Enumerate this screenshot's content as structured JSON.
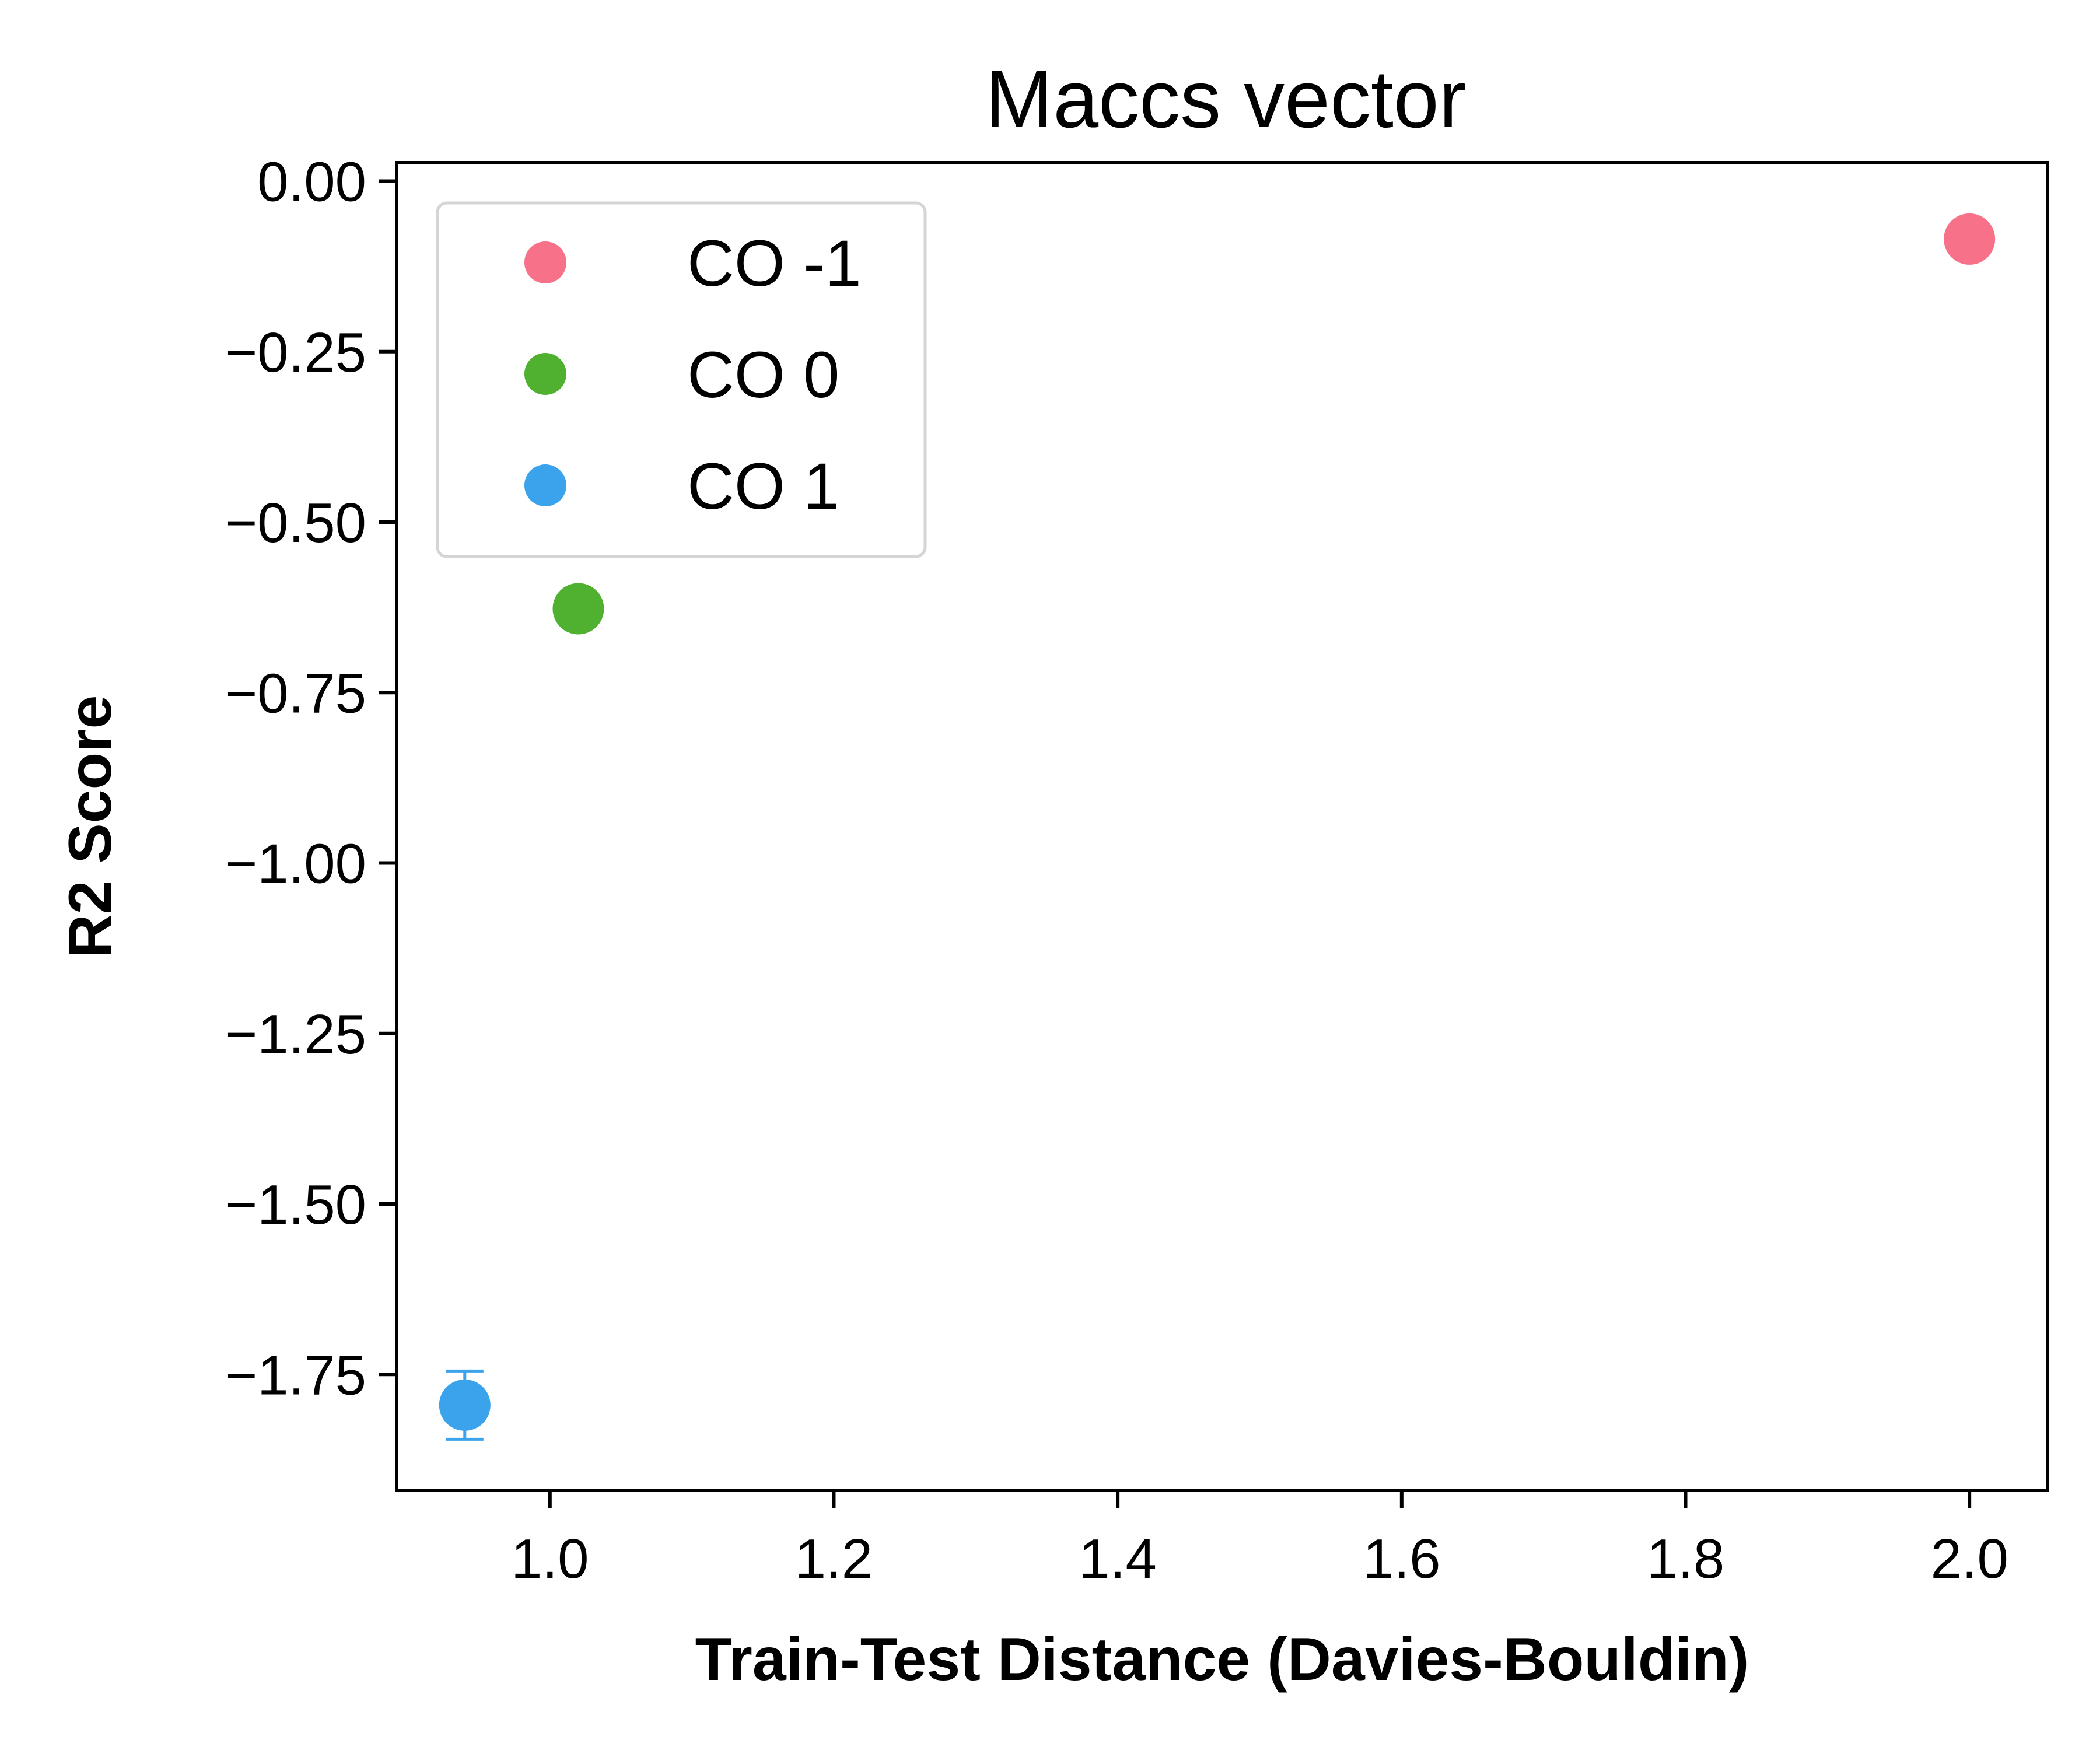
{
  "chart_data": {
    "type": "scatter",
    "title": "Maccs vector",
    "xlabel": "Train-Test Distance (Davies-Bouldin)",
    "ylabel": "R2 Score",
    "xlim": [
      0.892,
      2.055
    ],
    "ylim": [
      -1.92,
      0.027
    ],
    "xticks": [
      1.0,
      1.2,
      1.4,
      1.6,
      1.8,
      2.0
    ],
    "xtick_labels": [
      "1.0",
      "1.2",
      "1.4",
      "1.6",
      "1.8",
      "2.0"
    ],
    "yticks": [
      0.0,
      -0.25,
      -0.5,
      -0.75,
      -1.0,
      -1.25,
      -1.5,
      -1.75
    ],
    "ytick_labels": [
      "0.00",
      "−0.25",
      "−0.50",
      "−0.75",
      "−1.00",
      "−1.25",
      "−1.50",
      "−1.75"
    ],
    "grid": false,
    "legend_position": "top-left",
    "series": [
      {
        "name": "CO -1",
        "color": "#f77189",
        "x": 2.0,
        "y": -0.085,
        "yerr": 0.0
      },
      {
        "name": "CO 0",
        "color": "#50b131",
        "x": 1.02,
        "y": -0.627,
        "yerr": 0.0
      },
      {
        "name": "CO 1",
        "color": "#3ba3ec",
        "x": 0.94,
        "y": -1.795,
        "yerr": 0.05
      }
    ]
  }
}
